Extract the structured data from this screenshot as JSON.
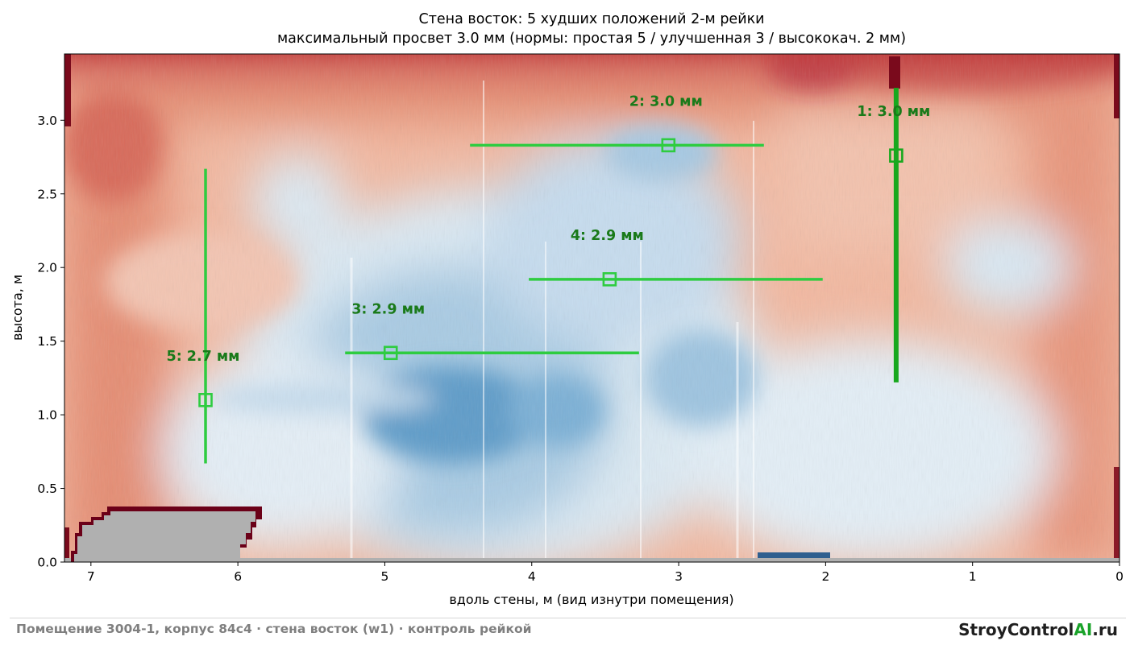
{
  "chart_data": {
    "type": "heatmap",
    "title": "Стена восток: 5 худших положений 2-м рейки",
    "subtitle": "максимальный просвет 3.0 мм (нормы: простая 5 / улучшенная 3 / высококач. 2 мм)",
    "xlabel": "вдоль стены, м (вид изнутри помещения)",
    "ylabel": "высота, м",
    "xlim": [
      7.18,
      0
    ],
    "ylim": [
      0,
      3.45
    ],
    "x_ticks": [
      7,
      6,
      5,
      4,
      3,
      2,
      1,
      0
    ],
    "y_ticks": [
      "0.0",
      "0.5",
      "1.0",
      "1.5",
      "2.0",
      "2.5",
      "3.0"
    ],
    "colormap": "diverging-red-blue",
    "colors": {
      "worst_marker": "#2ecc40",
      "worst_marker_primary": "#18a81e",
      "annotation": "#1a7a1a",
      "no_data": "#b0b0b0",
      "border_extreme": "#6b0018"
    },
    "placements": [
      {
        "rank": 1,
        "label": "1: 3.0 мм",
        "gap_mm": 3.0,
        "orientation": "vertical",
        "x": 1.52,
        "y_from": 1.22,
        "y_to": 3.22,
        "max_x": 1.52,
        "max_y": 2.76
      },
      {
        "rank": 2,
        "label": "2: 3.0 мм",
        "gap_mm": 3.0,
        "orientation": "horizontal",
        "y": 2.83,
        "x_from": 4.42,
        "x_to": 2.42,
        "max_x": 3.07,
        "max_y": 2.83
      },
      {
        "rank": 3,
        "label": "3: 2.9 мм",
        "gap_mm": 2.9,
        "orientation": "horizontal",
        "y": 1.42,
        "x_from": 5.27,
        "x_to": 3.27,
        "max_x": 4.96,
        "max_y": 1.42
      },
      {
        "rank": 4,
        "label": "4: 2.9 мм",
        "gap_mm": 2.9,
        "orientation": "horizontal",
        "y": 1.92,
        "x_from": 4.02,
        "x_to": 2.02,
        "max_x": 3.47,
        "max_y": 1.92
      },
      {
        "rank": 5,
        "label": "5: 2.7 мм",
        "gap_mm": 2.7,
        "orientation": "vertical",
        "x": 6.22,
        "y_from": 0.67,
        "y_to": 2.67,
        "max_x": 6.22,
        "max_y": 1.1
      }
    ]
  },
  "footer": {
    "caption": "Помещение 3004-1, корпус 84c4 · стена восток (w1) · контроль рейкой",
    "brand_prefix": "StroyControl",
    "brand_accent": "AI",
    "brand_suffix": ".ru"
  }
}
